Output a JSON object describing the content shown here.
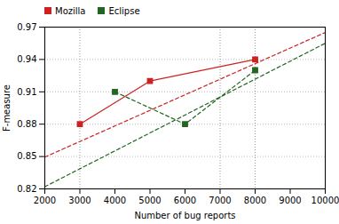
{
  "chart_data": {
    "type": "line",
    "xlabel": "Number of bug reports",
    "ylabel": "F-measure",
    "xlim": [
      2000,
      10000
    ],
    "ylim": [
      0.82,
      0.97
    ],
    "xticks": [
      2000,
      3000,
      4000,
      5000,
      6000,
      7000,
      8000,
      9000,
      10000
    ],
    "yticks": [
      0.82,
      0.85,
      0.88,
      0.91,
      0.94,
      0.97
    ],
    "grid": true,
    "legend": "upper left",
    "vlines": [
      3000,
      7000,
      8000
    ],
    "series": [
      {
        "x": [
          2000,
          10000
        ],
        "values": [
          0.8495,
          0.965
        ],
        "color": "#cc2222",
        "line_style": "dashed",
        "marker": "none"
      },
      {
        "x": [
          2000,
          10000
        ],
        "values": [
          0.822,
          0.955
        ],
        "color": "#226622",
        "line_style": "dashed",
        "marker": "none"
      },
      {
        "name": "Mozilla",
        "x": [
          3000,
          5000,
          8000
        ],
        "values": [
          0.88,
          0.92,
          0.94
        ],
        "color": "#cc2222",
        "line_style": "solid",
        "marker": "square"
      },
      {
        "name": "Eclipse",
        "x": [
          4000,
          6000,
          8000
        ],
        "values": [
          0.91,
          0.88,
          0.93
        ],
        "color": "#226622",
        "line_style": "dashed",
        "marker": "square"
      }
    ]
  }
}
